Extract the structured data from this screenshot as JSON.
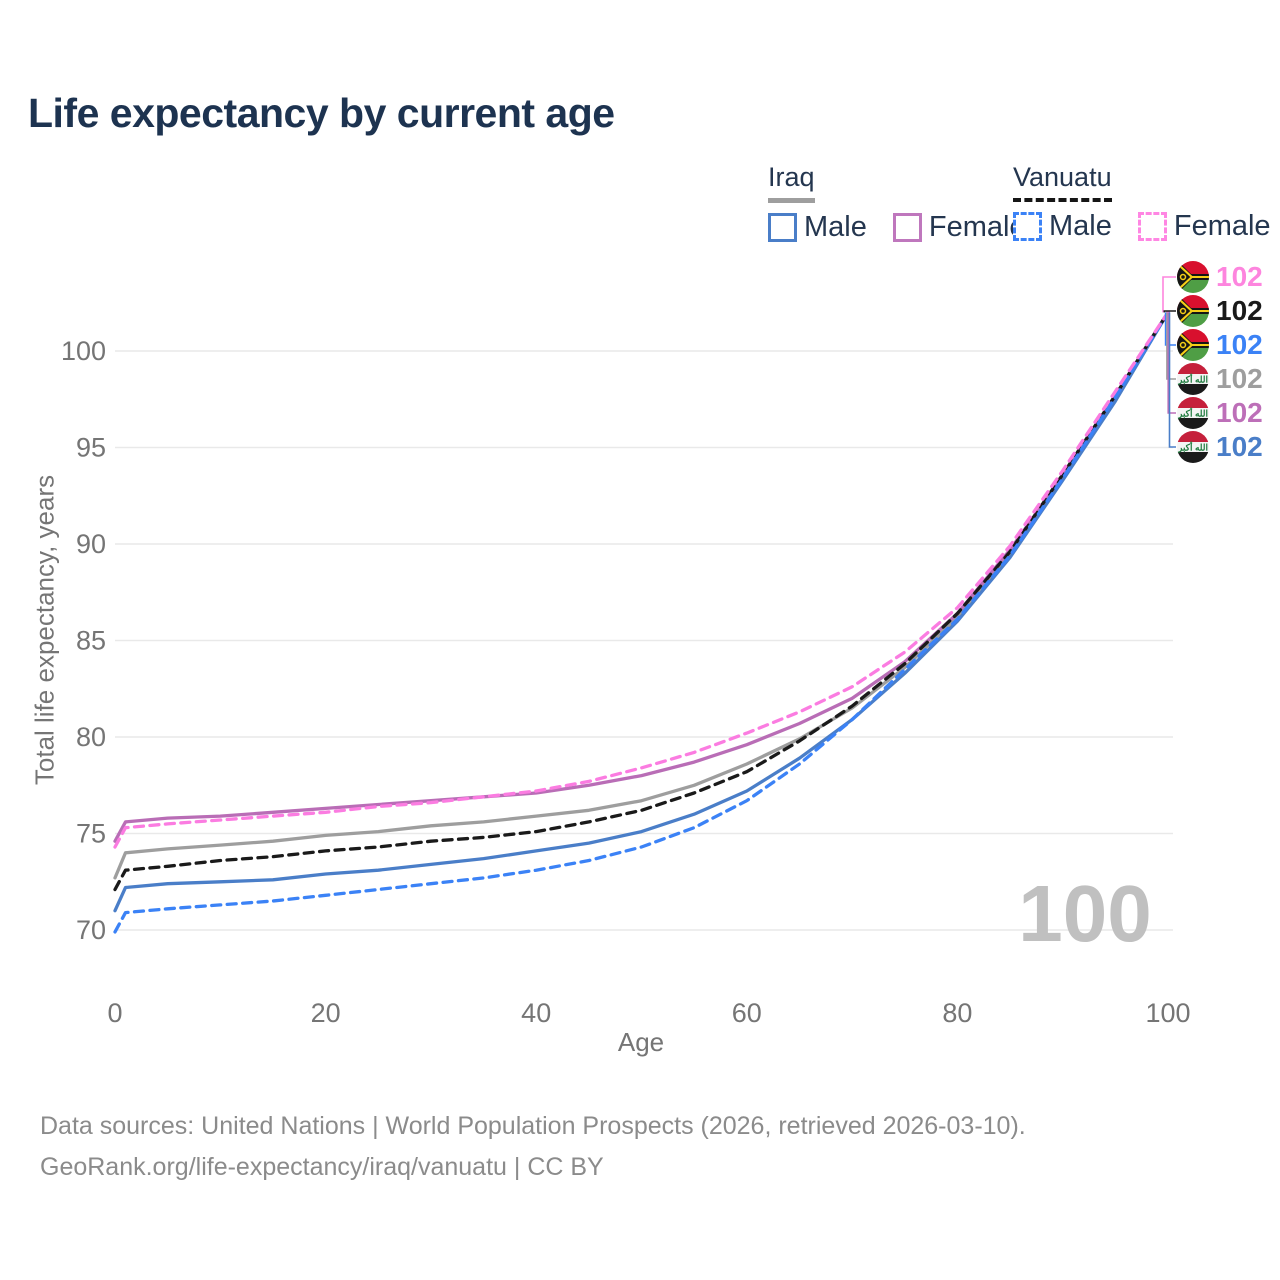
{
  "title": "Life expectancy by current age",
  "legend": {
    "groups": [
      {
        "label": "Iraq",
        "underline_style": "solid",
        "underline_color": "#9e9e9e",
        "items": [
          {
            "label": "Male",
            "color": "#4a7ec8",
            "dash": false
          },
          {
            "label": "Female",
            "color": "#bf77bd",
            "dash": false
          }
        ]
      },
      {
        "label": "Vanuatu",
        "underline_style": "dashed",
        "underline_color": "#161616",
        "items": [
          {
            "label": "Male",
            "color": "#3b82f6",
            "dash": true
          },
          {
            "label": "Female",
            "color": "#ff86e3",
            "dash": true
          }
        ]
      }
    ]
  },
  "chart_data": {
    "type": "line",
    "title": "Life expectancy by current age",
    "xlabel": "Age",
    "ylabel": "Total life expectancy, years",
    "xticks": [
      0,
      20,
      40,
      60,
      80,
      100
    ],
    "yticks": [
      70,
      75,
      80,
      85,
      90,
      95,
      100
    ],
    "xlim": [
      0,
      100
    ],
    "ylim": [
      68.5,
      103
    ],
    "grid": true,
    "watermark": "100",
    "x": [
      0,
      1,
      5,
      10,
      15,
      20,
      25,
      30,
      35,
      40,
      45,
      50,
      55,
      60,
      65,
      70,
      75,
      80,
      85,
      90,
      95,
      100
    ],
    "series": [
      {
        "name": "Iraq Total",
        "country": "iraq",
        "sex": "total",
        "color": "#9e9e9e",
        "dash": false,
        "values": [
          72.7,
          74.0,
          74.2,
          74.4,
          74.6,
          74.9,
          75.1,
          75.4,
          75.6,
          75.9,
          76.2,
          76.7,
          77.5,
          78.6,
          79.9,
          81.5,
          83.6,
          86.2,
          89.5,
          93.4,
          97.5,
          102
        ],
        "end_label": "102",
        "end_label_color": "#9e9e9e"
      },
      {
        "name": "Iraq Female",
        "country": "iraq",
        "sex": "female",
        "color": "#b96db6",
        "dash": false,
        "values": [
          74.6,
          75.6,
          75.8,
          75.9,
          76.1,
          76.3,
          76.5,
          76.7,
          76.9,
          77.1,
          77.5,
          78.0,
          78.7,
          79.6,
          80.7,
          82.0,
          83.9,
          86.4,
          89.7,
          93.5,
          97.6,
          102
        ],
        "end_label": "102",
        "end_label_color": "#bd6fb8"
      },
      {
        "name": "Iraq Male",
        "country": "iraq",
        "sex": "male",
        "color": "#4a7ec8",
        "dash": false,
        "values": [
          71.0,
          72.2,
          72.4,
          72.5,
          72.6,
          72.9,
          73.1,
          73.4,
          73.7,
          74.1,
          74.5,
          75.1,
          76.0,
          77.2,
          78.9,
          80.9,
          83.3,
          86.0,
          89.3,
          93.3,
          97.4,
          102
        ],
        "end_label": "102",
        "end_label_color": "#4a7ec8"
      },
      {
        "name": "Vanuatu Total",
        "country": "vanuatu",
        "sex": "total",
        "color": "#1a1a1a",
        "dash": true,
        "values": [
          72.1,
          73.1,
          73.3,
          73.6,
          73.8,
          74.1,
          74.3,
          74.6,
          74.8,
          75.1,
          75.6,
          76.2,
          77.1,
          78.2,
          79.8,
          81.6,
          83.8,
          86.4,
          89.6,
          93.6,
          97.7,
          102
        ],
        "end_label": "102",
        "end_label_color": "#1a1a1a"
      },
      {
        "name": "Vanuatu Male",
        "country": "vanuatu",
        "sex": "male",
        "color": "#3b82f6",
        "dash": true,
        "values": [
          69.9,
          70.9,
          71.1,
          71.3,
          71.5,
          71.8,
          72.1,
          72.4,
          72.7,
          73.1,
          73.6,
          74.3,
          75.3,
          76.7,
          78.6,
          80.9,
          83.5,
          86.1,
          89.4,
          93.4,
          97.6,
          102
        ],
        "end_label": "102",
        "end_label_color": "#3b82f6"
      },
      {
        "name": "Vanuatu Female",
        "country": "vanuatu",
        "sex": "female",
        "color": "#fb7ce1",
        "dash": true,
        "values": [
          74.3,
          75.3,
          75.5,
          75.7,
          75.9,
          76.1,
          76.4,
          76.6,
          76.9,
          77.2,
          77.7,
          78.4,
          79.2,
          80.2,
          81.3,
          82.6,
          84.4,
          86.7,
          89.9,
          93.8,
          97.9,
          102
        ],
        "end_label": "102",
        "end_label_color": "#fd85de"
      }
    ],
    "end_label_rows": [
      "Vanuatu Female",
      "Vanuatu Total",
      "Vanuatu Male",
      "Iraq Total",
      "Iraq Female",
      "Iraq Male"
    ]
  },
  "footer": {
    "line1": "Data sources: United Nations | World Population Prospects (2026, retrieved 2026-03-10).",
    "line2": "GeoRank.org/life-expectancy/iraq/vanuatu | CC BY"
  }
}
